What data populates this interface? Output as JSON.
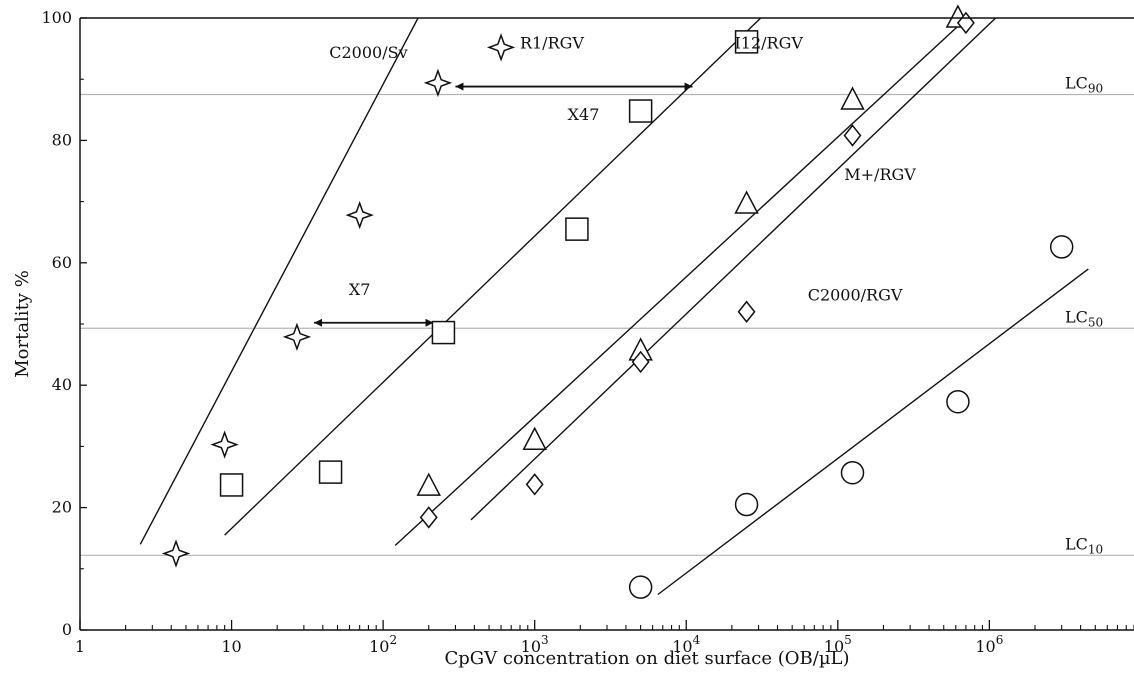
{
  "chart_data": {
    "type": "scatter",
    "title": "",
    "xlabel": "CpGV concentration on diet surface (OB/µL)",
    "ylabel": "Mortality %",
    "x_scale": "log",
    "xlim": [
      1,
      9000000
    ],
    "ylim": [
      0,
      100
    ],
    "grid": false,
    "x_ticks": [
      {
        "value": 1,
        "base": "1",
        "exp": ""
      },
      {
        "value": 10,
        "base": "10",
        "exp": ""
      },
      {
        "value": 100,
        "base": "10",
        "exp": "2"
      },
      {
        "value": 1000,
        "base": "10",
        "exp": "3"
      },
      {
        "value": 10000,
        "base": "10",
        "exp": "4"
      },
      {
        "value": 100000,
        "base": "10",
        "exp": "5"
      },
      {
        "value": 1000000,
        "base": "10",
        "exp": "6"
      }
    ],
    "y_ticks": [
      0,
      20,
      40,
      60,
      80,
      100
    ],
    "reference_lines": [
      {
        "y": 87.5,
        "label_base": "LC",
        "label_sub": "90"
      },
      {
        "y": 49.3,
        "label_base": "LC",
        "label_sub": "50"
      },
      {
        "y": 12.2,
        "label_base": "LC",
        "label_sub": "10"
      }
    ],
    "series": [
      {
        "name": "C2000/Sv",
        "marker": "star",
        "points": [
          [
            4.3,
            12.5
          ],
          [
            9,
            30.3
          ],
          [
            27,
            47.9
          ],
          [
            70,
            67.8
          ],
          [
            230,
            89.4
          ],
          [
            600,
            95.2
          ]
        ],
        "fit": [
          [
            2.5,
            14
          ],
          [
            170,
            100
          ]
        ]
      },
      {
        "name": "R1/RGV",
        "marker": "square",
        "points": [
          [
            10,
            23.7
          ],
          [
            45,
            25.8
          ],
          [
            250,
            48.6
          ],
          [
            1900,
            65.5
          ],
          [
            5000,
            84.8
          ],
          [
            25000,
            96.1
          ]
        ],
        "fit": [
          [
            9,
            15.5
          ],
          [
            31000,
            100
          ]
        ]
      },
      {
        "name": "I12/RGV",
        "marker": "triangle",
        "points": [
          [
            200,
            23.5
          ],
          [
            1000,
            31
          ],
          [
            5000,
            45.6
          ],
          [
            25000,
            69.6
          ],
          [
            125000,
            86.6
          ],
          [
            620000,
            100
          ]
        ],
        "fit": [
          [
            120,
            13.8
          ],
          [
            710000,
            100
          ]
        ]
      },
      {
        "name": "M+/RGV",
        "marker": "diamond",
        "points": [
          [
            200,
            18.4
          ],
          [
            1000,
            23.8
          ],
          [
            5000,
            43.8
          ],
          [
            25000,
            52
          ],
          [
            125000,
            80.8
          ],
          [
            700000,
            99.2
          ]
        ],
        "fit": [
          [
            380,
            18
          ],
          [
            1100000,
            100
          ]
        ]
      },
      {
        "name": "C2000/RGV",
        "marker": "circle",
        "points": [
          [
            5000,
            7
          ],
          [
            25000,
            20.5
          ],
          [
            125000,
            25.7
          ],
          [
            620000,
            37.3
          ],
          [
            3000000,
            62.6
          ]
        ],
        "fit": [
          [
            6500,
            5.8
          ],
          [
            4500000,
            59
          ]
        ]
      }
    ],
    "annotations": [
      {
        "text": "C2000/Sv",
        "x": 80,
        "y": 93.5
      },
      {
        "text": "R1/RGV",
        "x": 1300,
        "y": 95
      },
      {
        "text": "I12/RGV",
        "x": 35000,
        "y": 95
      },
      {
        "text": "M+/RGV",
        "x": 190000,
        "y": 73.5
      },
      {
        "text": "C2000/RGV",
        "x": 130000,
        "y": 53.8
      },
      {
        "text": "X47",
        "x": 2100,
        "y": 83.3
      },
      {
        "text": "X7",
        "x": 70,
        "y": 54.7
      }
    ],
    "arrows": [
      {
        "label": "X47",
        "x1": 300,
        "x2": 11000,
        "y": 88.8
      },
      {
        "label": "X7",
        "x1": 35,
        "x2": 215,
        "y": 50.2
      }
    ]
  }
}
